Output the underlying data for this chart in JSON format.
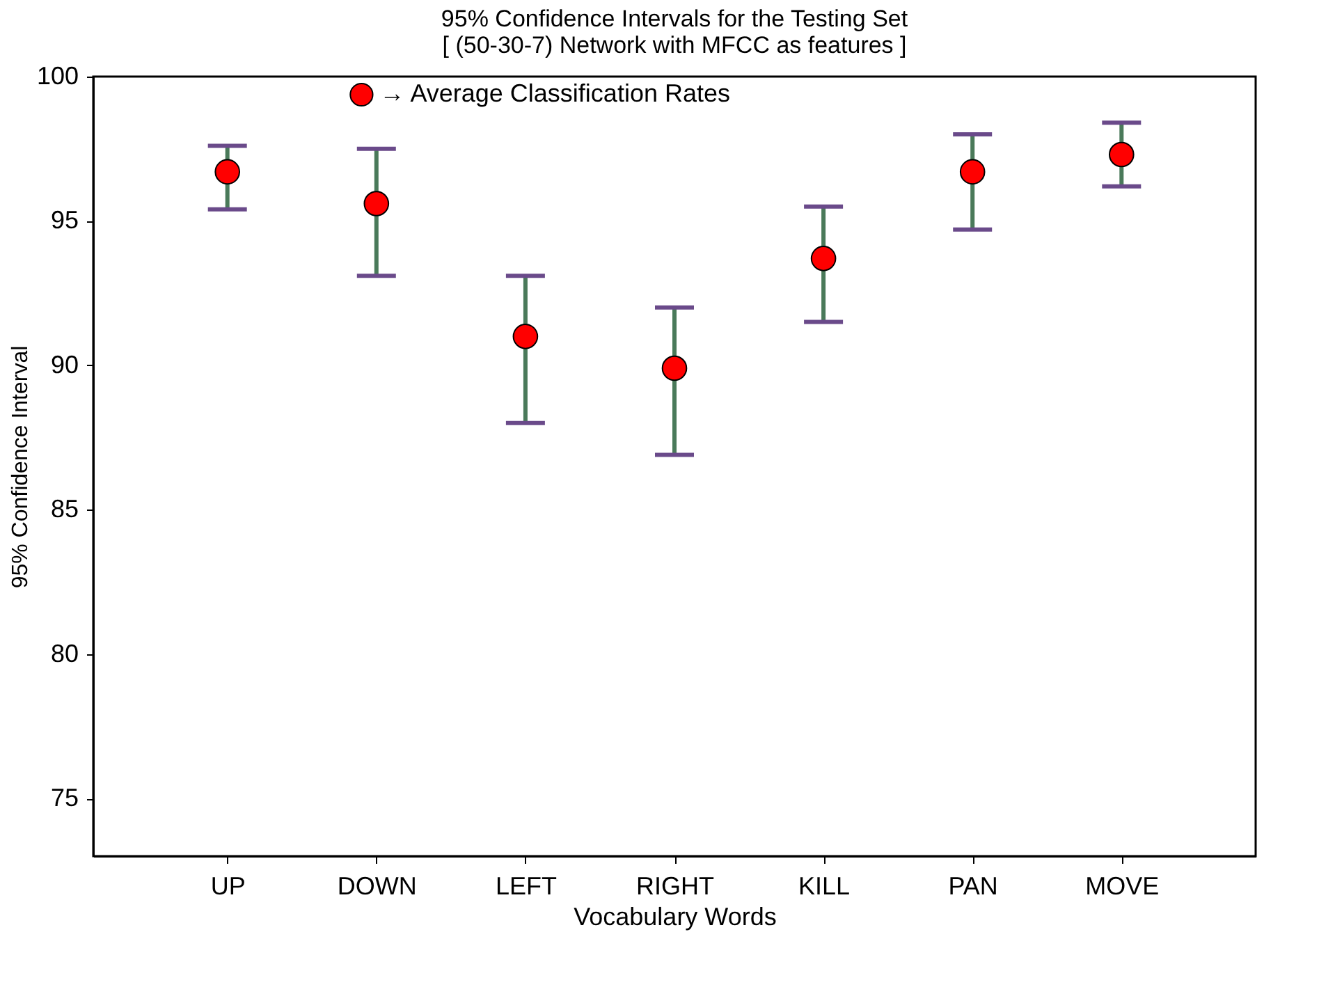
{
  "chart_data": {
    "type": "scatter",
    "title": "95% Confidence Intervals for the Testing Set\n[ (50-30-7) Network with MFCC as features ]",
    "xlabel": "Vocabulary Words",
    "ylabel": "95% Confidence Interval",
    "categories": [
      "UP",
      "DOWN",
      "LEFT",
      "RIGHT",
      "KILL",
      "PAN",
      "MOVE"
    ],
    "series": [
      {
        "name": "→ Average Classification Rates",
        "color": "#ff0000",
        "values": [
          96.7,
          95.6,
          91.0,
          89.9,
          93.7,
          96.7,
          97.3
        ],
        "errors": [
          [
            95.4,
            97.6
          ],
          [
            93.1,
            97.5
          ],
          [
            88.0,
            93.1
          ],
          [
            86.9,
            92.0
          ],
          [
            91.5,
            95.5
          ],
          [
            94.7,
            98.0
          ],
          [
            96.2,
            98.4
          ]
        ]
      }
    ],
    "ylim": [
      73,
      100
    ],
    "yticks": [
      75,
      80,
      85,
      90,
      95,
      100
    ],
    "grid": false,
    "legend": "top",
    "marker": "circle"
  }
}
